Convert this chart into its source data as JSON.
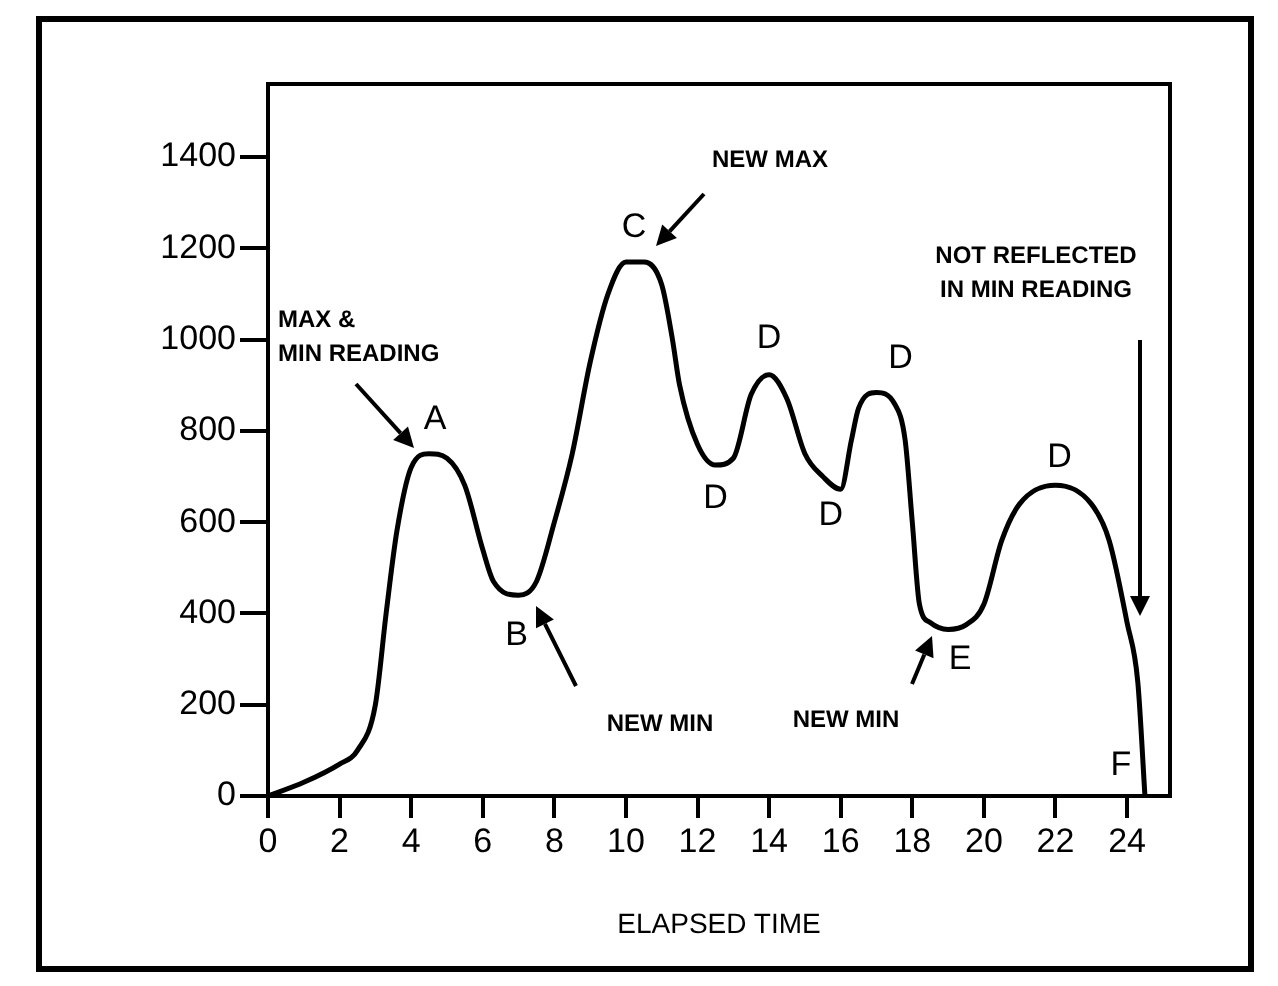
{
  "chart_data": {
    "type": "line",
    "xlabel": "ELAPSED TIME",
    "x": [
      0,
      1,
      2,
      2.5,
      3,
      3.3,
      3.6,
      4,
      4.5,
      5,
      5.5,
      6,
      6.3,
      7,
      7.5,
      8,
      8.5,
      9,
      9.5,
      10,
      10.5,
      11,
      11.3,
      11.5,
      12,
      12.5,
      13,
      13.5,
      14,
      14.5,
      15,
      15.5,
      16,
      16.3,
      16.5,
      17,
      17.5,
      17.8,
      18,
      18.2,
      18.5,
      19,
      19.5,
      20,
      20.5,
      21,
      22,
      23,
      23.5,
      24,
      24.3,
      24.5
    ],
    "series": [
      {
        "color": "#000000",
        "values": [
          0,
          30,
          70,
          100,
          200,
          400,
          580,
          720,
          750,
          740,
          680,
          540,
          470,
          440,
          470,
          600,
          750,
          950,
          1100,
          1170,
          1170,
          1120,
          1000,
          900,
          770,
          725,
          740,
          880,
          923,
          870,
          750,
          700,
          672,
          780,
          850,
          884,
          860,
          780,
          600,
          420,
          380,
          365,
          375,
          420,
          560,
          640,
          681,
          640,
          560,
          380,
          250,
          0
        ]
      }
    ],
    "xlim": [
      0,
      25.2
    ],
    "xticks": [
      0,
      2,
      4,
      6,
      8,
      10,
      12,
      14,
      16,
      18,
      20,
      22,
      24
    ],
    "ylim": [
      0,
      1560
    ],
    "yticks": [
      0,
      200,
      400,
      600,
      800,
      1000,
      1200,
      1400
    ],
    "grid": false,
    "legend": false,
    "marker": "none",
    "line_style": "solid",
    "annotations": [
      {
        "text": "A",
        "x": 4.5,
        "y": 750
      },
      "MAX &\nMIN READING",
      {
        "text": "B",
        "x": 7,
        "y": 440
      },
      "NEW MIN",
      {
        "text": "C",
        "x": 10,
        "y": 1170
      },
      "NEW MAX",
      {
        "text": "D",
        "x": 12.5,
        "y": 725
      },
      {
        "text": "D",
        "x": 14,
        "y": 923
      },
      {
        "text": "D",
        "x": 16,
        "y": 672
      },
      {
        "text": "D",
        "x": 17,
        "y": 884
      },
      {
        "text": "D",
        "x": 22,
        "y": 681
      },
      {
        "text": "E",
        "x": 19,
        "y": 365
      },
      "NEW MIN",
      {
        "text": "F",
        "x": 24.5,
        "y": 0
      },
      "NOT REFLECTED\nIN MIN READING"
    ]
  }
}
